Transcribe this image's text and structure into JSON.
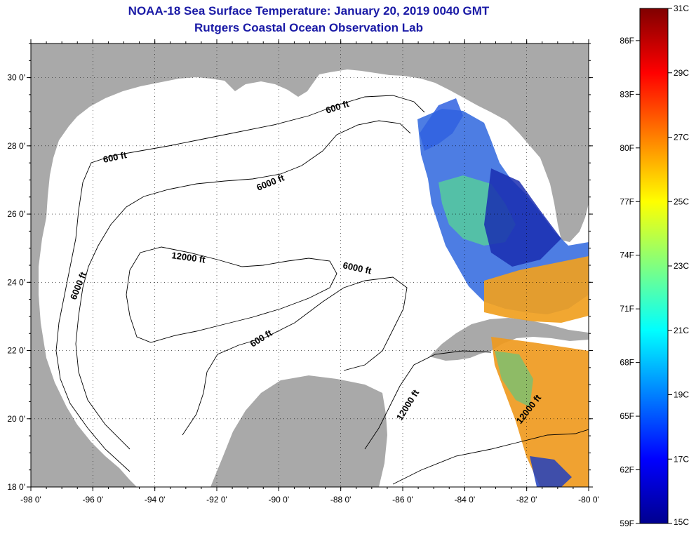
{
  "title": "NOAA-18 Sea Surface Temperature:  January 20, 2019 0040 GMT",
  "subtitle": "Rutgers Coastal Ocean Observation Lab",
  "lat_ticks": [
    {
      "label": "30 0'",
      "value": 30
    },
    {
      "label": "28 0'",
      "value": 28
    },
    {
      "label": "26 0'",
      "value": 26
    },
    {
      "label": "24 0'",
      "value": 24
    },
    {
      "label": "22 0'",
      "value": 22
    },
    {
      "label": "20 0'",
      "value": 20
    },
    {
      "label": "18 0'",
      "value": 18
    }
  ],
  "lon_ticks": [
    {
      "label": "-98 0'",
      "value": -98
    },
    {
      "label": "-96 0'",
      "value": -96
    },
    {
      "label": "-94 0'",
      "value": -94
    },
    {
      "label": "-92 0'",
      "value": -92
    },
    {
      "label": "-90 0'",
      "value": -90
    },
    {
      "label": "-88 0'",
      "value": -88
    },
    {
      "label": "-86 0'",
      "value": -86
    },
    {
      "label": "-84 0'",
      "value": -84
    },
    {
      "label": "-82 0'",
      "value": -82
    },
    {
      "label": "-80 0'",
      "value": -80
    }
  ],
  "contour_labels": [
    {
      "text": "600 ft"
    },
    {
      "text": "600 ft"
    },
    {
      "text": "6000 ft"
    },
    {
      "text": "12000 ft"
    },
    {
      "text": "6000 ft"
    },
    {
      "text": "6000 ft"
    },
    {
      "text": "600 ft"
    },
    {
      "text": "12000 ft"
    },
    {
      "text": "12000 ft"
    }
  ],
  "colorbar": {
    "celsius": [
      "31C",
      "29C",
      "27C",
      "25C",
      "23C",
      "21C",
      "19C",
      "17C",
      "15C"
    ],
    "fahrenheit": [
      "86F",
      "83F",
      "80F",
      "77F",
      "74F",
      "71F",
      "68F",
      "65F",
      "62F",
      "59F"
    ],
    "colors": [
      "#00008f",
      "#0000ff",
      "#0080ff",
      "#00ffff",
      "#80ff80",
      "#ffff00",
      "#ff8000",
      "#ff0000",
      "#800000"
    ]
  },
  "colors": {
    "land": "#a9a9a9",
    "title": "#1a1aa6",
    "ocean": "#ffffff"
  }
}
